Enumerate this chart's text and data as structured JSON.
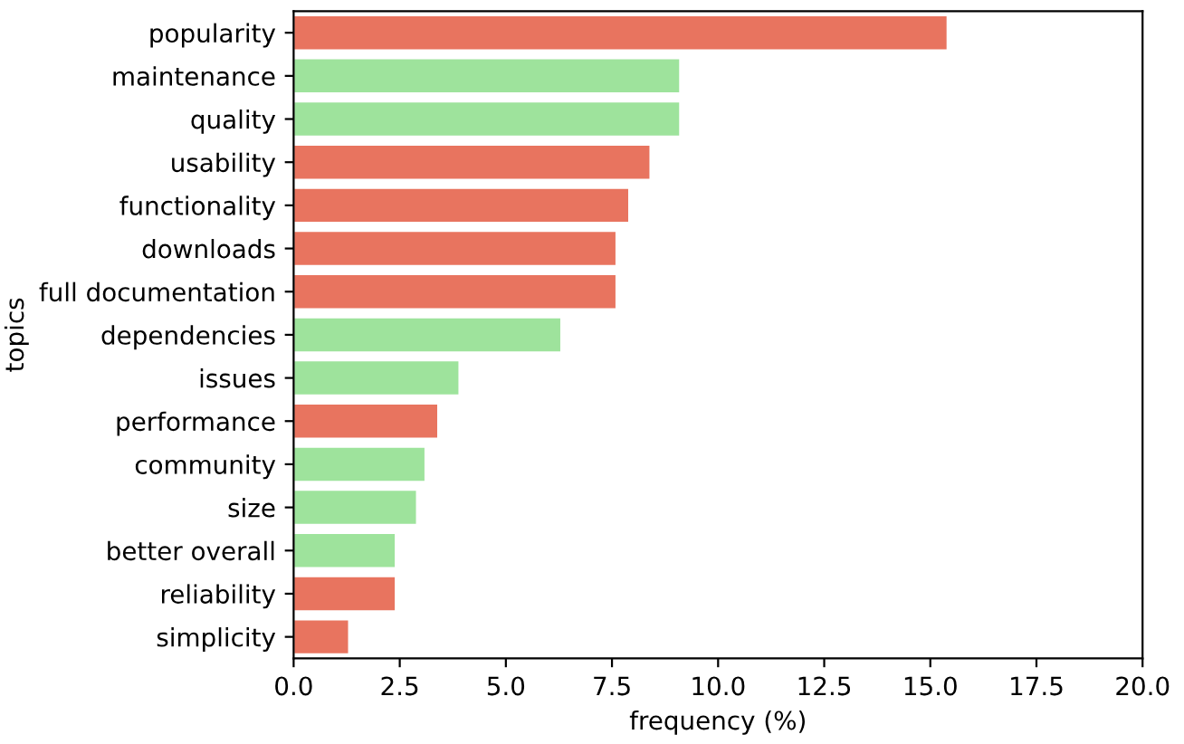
{
  "chart_data": {
    "type": "bar",
    "orientation": "horizontal",
    "xlabel": "frequency (%)",
    "ylabel": "topics",
    "categories": [
      "popularity",
      "maintenance",
      "quality",
      "usability",
      "functionality",
      "downloads",
      "full documentation",
      "dependencies",
      "issues",
      "performance",
      "community",
      "size",
      "better overall",
      "reliability",
      "simplicity"
    ],
    "values": [
      15.4,
      9.1,
      9.1,
      8.4,
      7.9,
      7.6,
      7.6,
      6.3,
      3.9,
      3.4,
      3.1,
      2.9,
      2.4,
      2.4,
      1.3
    ],
    "colors": [
      "#e8745f",
      "#9ee39c",
      "#9ee39c",
      "#e8745f",
      "#e8745f",
      "#e8745f",
      "#e8745f",
      "#9ee39c",
      "#9ee39c",
      "#e8745f",
      "#9ee39c",
      "#9ee39c",
      "#9ee39c",
      "#e8745f",
      "#e8745f"
    ],
    "xlim": [
      0,
      20
    ],
    "xticks": [
      {
        "value": 0,
        "label": "0.0"
      },
      {
        "value": 2.5,
        "label": "2.5"
      },
      {
        "value": 5,
        "label": "5.0"
      },
      {
        "value": 7.5,
        "label": "7.5"
      },
      {
        "value": 10,
        "label": "10.0"
      },
      {
        "value": 12.5,
        "label": "12.5"
      },
      {
        "value": 15,
        "label": "15.0"
      },
      {
        "value": 17.5,
        "label": "17.5"
      },
      {
        "value": 20,
        "label": "20.0"
      }
    ],
    "grid": false
  }
}
